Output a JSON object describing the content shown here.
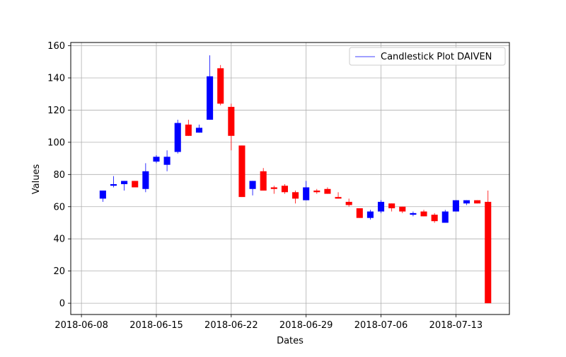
{
  "chart_data": {
    "type": "candlestick",
    "title": "",
    "xlabel": "Dates",
    "ylabel": "Values",
    "ylim": [
      -7,
      162
    ],
    "xlim": [
      "2018-06-07",
      "2018-07-18"
    ],
    "grid": true,
    "legend_position": "top-right",
    "legend": [
      {
        "label": "Candlestick Plot DAIVEN",
        "color": "#0000ff"
      }
    ],
    "colors": {
      "up": "#0000ff",
      "down": "#ff0000"
    },
    "y_ticks": [
      0,
      20,
      40,
      60,
      80,
      100,
      120,
      140,
      160
    ],
    "x_ticks": [
      "2018-06-08",
      "2018-06-15",
      "2018-06-22",
      "2018-06-29",
      "2018-07-06",
      "2018-07-13"
    ],
    "series": [
      {
        "date": "2018-06-10",
        "open": 65,
        "high": 70,
        "low": 63,
        "close": 70
      },
      {
        "date": "2018-06-11",
        "open": 73,
        "high": 79,
        "low": 72,
        "close": 74
      },
      {
        "date": "2018-06-12",
        "open": 74,
        "high": 76,
        "low": 70,
        "close": 76
      },
      {
        "date": "2018-06-13",
        "open": 76,
        "high": 76,
        "low": 72,
        "close": 72
      },
      {
        "date": "2018-06-14",
        "open": 71,
        "high": 87,
        "low": 69,
        "close": 82
      },
      {
        "date": "2018-06-15",
        "open": 88,
        "high": 92,
        "low": 87,
        "close": 91
      },
      {
        "date": "2018-06-16",
        "open": 86,
        "high": 95,
        "low": 82,
        "close": 91
      },
      {
        "date": "2018-06-17",
        "open": 94,
        "high": 114,
        "low": 93,
        "close": 112
      },
      {
        "date": "2018-06-18",
        "open": 111,
        "high": 114,
        "low": 104,
        "close": 104
      },
      {
        "date": "2018-06-19",
        "open": 106,
        "high": 111,
        "low": 106,
        "close": 109
      },
      {
        "date": "2018-06-20",
        "open": 114,
        "high": 154,
        "low": 114,
        "close": 141
      },
      {
        "date": "2018-06-21",
        "open": 146,
        "high": 148,
        "low": 123,
        "close": 124
      },
      {
        "date": "2018-06-22",
        "open": 122,
        "high": 124,
        "low": 95,
        "close": 104
      },
      {
        "date": "2018-06-23",
        "open": 98,
        "high": 98,
        "low": 66,
        "close": 66
      },
      {
        "date": "2018-06-24",
        "open": 71,
        "high": 76,
        "low": 67,
        "close": 76
      },
      {
        "date": "2018-06-25",
        "open": 82,
        "high": 84,
        "low": 70,
        "close": 70
      },
      {
        "date": "2018-06-26",
        "open": 72,
        "high": 73,
        "low": 68,
        "close": 71
      },
      {
        "date": "2018-06-27",
        "open": 73,
        "high": 74,
        "low": 68,
        "close": 69
      },
      {
        "date": "2018-06-28",
        "open": 69,
        "high": 70,
        "low": 62,
        "close": 65
      },
      {
        "date": "2018-06-29",
        "open": 64,
        "high": 76,
        "low": 64,
        "close": 72
      },
      {
        "date": "2018-06-30",
        "open": 70,
        "high": 71,
        "low": 68,
        "close": 69
      },
      {
        "date": "2018-07-01",
        "open": 71,
        "high": 72,
        "low": 68,
        "close": 68
      },
      {
        "date": "2018-07-02",
        "open": 66,
        "high": 69,
        "low": 65,
        "close": 65
      },
      {
        "date": "2018-07-03",
        "open": 63,
        "high": 65,
        "low": 60,
        "close": 61
      },
      {
        "date": "2018-07-04",
        "open": 59,
        "high": 59,
        "low": 53,
        "close": 53
      },
      {
        "date": "2018-07-05",
        "open": 53,
        "high": 58,
        "low": 52,
        "close": 57
      },
      {
        "date": "2018-07-06",
        "open": 57,
        "high": 64,
        "low": 56,
        "close": 63
      },
      {
        "date": "2018-07-07",
        "open": 62,
        "high": 62,
        "low": 57,
        "close": 59
      },
      {
        "date": "2018-07-08",
        "open": 60,
        "high": 60,
        "low": 56,
        "close": 57
      },
      {
        "date": "2018-07-09",
        "open": 55,
        "high": 57,
        "low": 54,
        "close": 56
      },
      {
        "date": "2018-07-10",
        "open": 57,
        "high": 58,
        "low": 54,
        "close": 54
      },
      {
        "date": "2018-07-11",
        "open": 55,
        "high": 56,
        "low": 50,
        "close": 51
      },
      {
        "date": "2018-07-12",
        "open": 50,
        "high": 58,
        "low": 50,
        "close": 57
      },
      {
        "date": "2018-07-13",
        "open": 57,
        "high": 64,
        "low": 57,
        "close": 64
      },
      {
        "date": "2018-07-14",
        "open": 62,
        "high": 64,
        "low": 61,
        "close": 64
      },
      {
        "date": "2018-07-15",
        "open": 64,
        "high": 64,
        "low": 62,
        "close": 62
      },
      {
        "date": "2018-07-16",
        "open": 63,
        "high": 70,
        "low": 0,
        "close": 0
      }
    ]
  }
}
